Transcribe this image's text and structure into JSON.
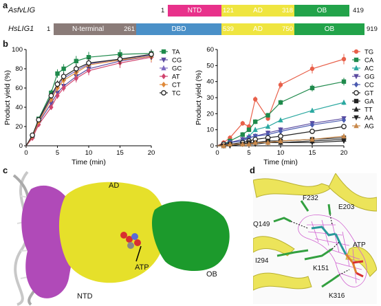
{
  "panel_labels": {
    "a": "a",
    "b": "b",
    "c": "c",
    "d": "d"
  },
  "panel_a": {
    "asfv": {
      "name": "AsfvLIG",
      "start": "1",
      "end": "419",
      "domains": [
        {
          "name": "NTD",
          "end_num": "",
          "color": "#e8318b"
        },
        {
          "name": "AD",
          "start_num": "121",
          "end_num": "318",
          "color": "#efe540"
        },
        {
          "name": "OB",
          "color": "#22a34a"
        }
      ]
    },
    "hs": {
      "name": "HsLIG1",
      "start": "1",
      "end": "919",
      "domains": [
        {
          "name": "N-terminal",
          "end_num": "261",
          "color": "#8a7b78"
        },
        {
          "name": "DBD",
          "color": "#4a90c8"
        },
        {
          "name": "AD",
          "start_num": "539",
          "end_num": "750",
          "color": "#efe540"
        },
        {
          "name": "OB",
          "color": "#22a34a"
        }
      ]
    }
  },
  "chart_data": [
    {
      "type": "line",
      "xlabel": "Time (min)",
      "ylabel": "Product yield (%)",
      "xlim": [
        0,
        20
      ],
      "ylim": [
        0,
        100
      ],
      "xticks": [
        0,
        5,
        10,
        15,
        20
      ],
      "yticks": [
        0,
        20,
        40,
        60,
        80,
        100
      ],
      "x": [
        1,
        2,
        4,
        5,
        6,
        8,
        10,
        15,
        20
      ],
      "series": [
        {
          "name": "TA",
          "color": "#1f8a4c",
          "marker": "square",
          "values": [
            10,
            28,
            55,
            75,
            80,
            88,
            92,
            95,
            96
          ]
        },
        {
          "name": "CG",
          "color": "#5a4aa0",
          "marker": "triangle-down",
          "values": [
            9,
            24,
            44,
            55,
            62,
            72,
            80,
            88,
            93
          ]
        },
        {
          "name": "GC",
          "color": "#7b68c0",
          "marker": "triangle",
          "values": [
            10,
            26,
            50,
            62,
            70,
            78,
            85,
            90,
            94
          ]
        },
        {
          "name": "AT",
          "color": "#d0446e",
          "marker": "diamond",
          "values": [
            8,
            22,
            40,
            52,
            60,
            70,
            78,
            86,
            92
          ]
        },
        {
          "name": "CT",
          "color": "#e08a3a",
          "marker": "diamond",
          "values": [
            10,
            25,
            48,
            60,
            68,
            76,
            84,
            89,
            93
          ]
        },
        {
          "name": "TC",
          "color": "#222222",
          "marker": "circle-open",
          "values": [
            11,
            27,
            52,
            64,
            72,
            80,
            86,
            90,
            95
          ]
        }
      ]
    },
    {
      "type": "line",
      "xlabel": "Time (min)",
      "ylabel": "Product yield (%)",
      "xlim": [
        0,
        20
      ],
      "ylim": [
        0,
        60
      ],
      "xticks": [
        0,
        5,
        10,
        15,
        20
      ],
      "yticks": [
        0,
        10,
        20,
        30,
        40,
        50,
        60
      ],
      "x": [
        1,
        2,
        4,
        5,
        6,
        8,
        10,
        15,
        20
      ],
      "series": [
        {
          "name": "TG",
          "color": "#e8604a",
          "marker": "circle",
          "values": [
            2,
            5,
            14,
            12,
            29,
            17,
            38,
            48,
            54
          ]
        },
        {
          "name": "CA",
          "color": "#1f8a4c",
          "marker": "square",
          "values": [
            1,
            3,
            7,
            10,
            15,
            19,
            27,
            36,
            40
          ]
        },
        {
          "name": "AC",
          "color": "#2aa8a0",
          "marker": "triangle",
          "values": [
            1,
            2,
            4,
            6,
            10,
            12,
            16,
            22,
            27
          ]
        },
        {
          "name": "GG",
          "color": "#5a4aa0",
          "marker": "triangle-down",
          "values": [
            1,
            2,
            4,
            5,
            6,
            8,
            10,
            14,
            17
          ]
        },
        {
          "name": "CC",
          "color": "#4a5ab0",
          "marker": "diamond",
          "values": [
            1,
            2,
            3,
            5,
            6,
            7,
            9,
            13,
            16
          ]
        },
        {
          "name": "GT",
          "color": "#222222",
          "marker": "circle-open",
          "values": [
            1,
            1,
            2,
            3,
            4,
            5,
            6,
            9,
            12
          ]
        },
        {
          "name": "GA",
          "color": "#222222",
          "marker": "square",
          "values": [
            0,
            1,
            1,
            2,
            2,
            3,
            3,
            4,
            5
          ]
        },
        {
          "name": "TT",
          "color": "#222222",
          "marker": "triangle",
          "values": [
            0,
            1,
            1,
            1,
            2,
            2,
            2,
            3,
            4
          ]
        },
        {
          "name": "AA",
          "color": "#222222",
          "marker": "triangle-down",
          "values": [
            0,
            0,
            1,
            1,
            1,
            2,
            2,
            2,
            3
          ]
        },
        {
          "name": "AG",
          "color": "#c8884a",
          "marker": "triangle",
          "values": [
            0,
            1,
            1,
            1,
            2,
            2,
            3,
            4,
            6
          ]
        }
      ]
    }
  ],
  "panel_c": {
    "labels": [
      "AD",
      "ATP",
      "OB",
      "NTD"
    ]
  },
  "panel_d": {
    "labels": [
      "F232",
      "E203",
      "Q149",
      "I294",
      "ATP",
      "K151",
      "K316"
    ]
  }
}
